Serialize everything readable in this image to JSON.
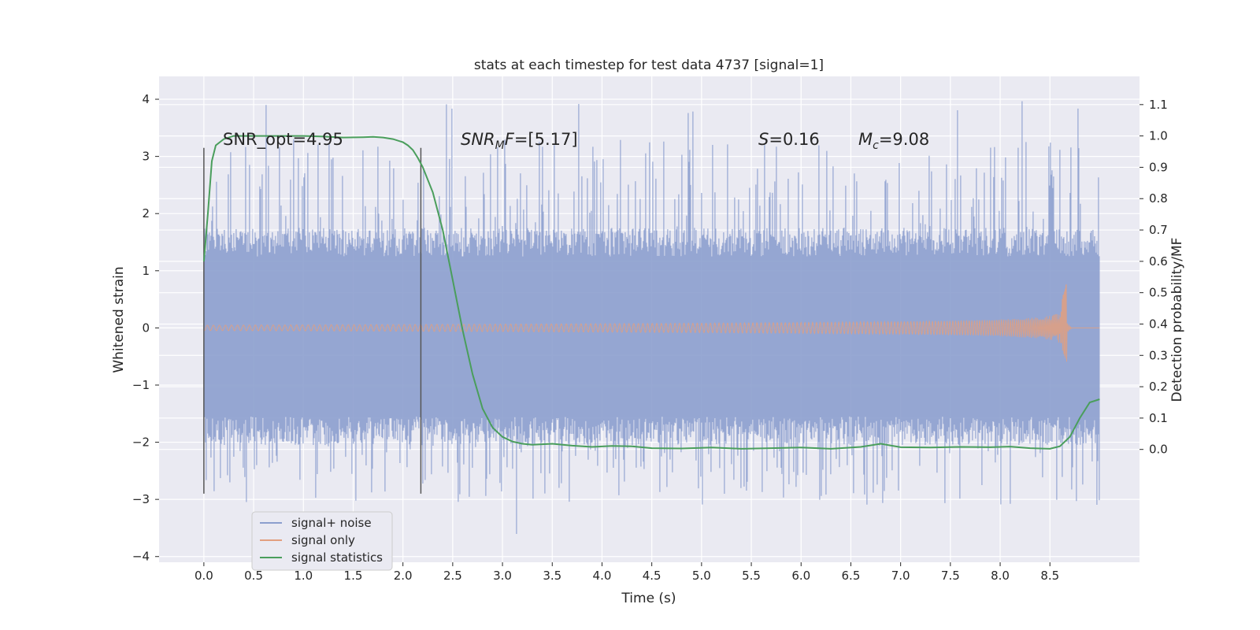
{
  "chart_data": {
    "type": "line",
    "title": "stats at each timestep for test data 4737 [signal=1]",
    "xlabel": "Time (s)",
    "ylabel": "Whitened strain",
    "ylabel_right": "Detection probability/MF",
    "xlim": [
      -0.45,
      9.4
    ],
    "ylim": [
      -4.1,
      4.4
    ],
    "ylim_right": [
      -0.36,
      1.19
    ],
    "x_ticks": [
      "0.0",
      "0.5",
      "1.0",
      "1.5",
      "2.0",
      "2.5",
      "3.0",
      "3.5",
      "4.0",
      "4.5",
      "5.0",
      "5.5",
      "6.0",
      "6.5",
      "7.0",
      "7.5",
      "8.0",
      "8.5"
    ],
    "y_ticks": [
      "4",
      "3",
      "2",
      "1",
      "0",
      "−1",
      "−2",
      "−3",
      "−4"
    ],
    "y_ticks_right": [
      "1.1",
      "1.0",
      "0.9",
      "0.8",
      "0.7",
      "0.6",
      "0.5",
      "0.4",
      "0.3",
      "0.2",
      "0.1",
      "0.0"
    ],
    "annotations": [
      {
        "text": "SNR_opt=4.95",
        "x": 0.2,
        "y": 3.15
      },
      {
        "text": "SNR_MF=[5.17]",
        "x": 2.6,
        "y": 3.15
      },
      {
        "text": "S=0.16",
        "x": 5.6,
        "y": 3.15
      },
      {
        "text": "M_c=9.08",
        "x": 6.6,
        "y": 3.15
      }
    ],
    "vertical_markers": [
      {
        "x": 0.0,
        "y_range": [
          -2.9,
          3.15
        ]
      },
      {
        "x": 2.18,
        "y_range": [
          -2.9,
          3.15
        ]
      }
    ],
    "legend": {
      "position": "lower-left",
      "entries": [
        {
          "label": "signal+ noise",
          "color": "#8c9fce"
        },
        {
          "label": "signal only",
          "color": "#e29f7f"
        },
        {
          "label": "signal statistics",
          "color": "#4a9e5c"
        }
      ]
    },
    "series": [
      {
        "name": "signal+ noise",
        "axis": "left",
        "color": "#8c9fce",
        "kind": "noise",
        "x_range": [
          0.0,
          9.0
        ],
        "band": [
          -1.7,
          1.4
        ],
        "peak_range": [
          -3.7,
          4.0
        ]
      },
      {
        "name": "signal only",
        "axis": "left",
        "color": "#e29f7f",
        "kind": "chirp",
        "x_range": [
          0.0,
          9.0
        ],
        "merger_time": 8.67,
        "peak_amplitude": [
          -0.6,
          0.8
        ]
      },
      {
        "name": "signal statistics",
        "axis": "right",
        "color": "#4a9e5c",
        "kind": "line",
        "x": [
          0.0,
          0.04,
          0.08,
          0.12,
          0.2,
          0.3,
          0.45,
          0.6,
          0.8,
          1.0,
          1.2,
          1.4,
          1.6,
          1.7,
          1.8,
          1.9,
          2.0,
          2.05,
          2.1,
          2.15,
          2.2,
          2.3,
          2.4,
          2.5,
          2.6,
          2.7,
          2.8,
          2.9,
          3.0,
          3.1,
          3.2,
          3.3,
          3.5,
          3.7,
          3.9,
          4.1,
          4.3,
          4.5,
          4.8,
          5.1,
          5.4,
          5.7,
          6.0,
          6.3,
          6.6,
          6.8,
          7.0,
          7.3,
          7.6,
          7.9,
          8.1,
          8.3,
          8.5,
          8.6,
          8.7,
          8.8,
          8.9,
          9.0
        ],
        "y": [
          0.6,
          0.75,
          0.92,
          0.97,
          0.99,
          1.0,
          1.0,
          1.0,
          1.0,
          1.0,
          0.998,
          0.995,
          0.996,
          0.997,
          0.995,
          0.99,
          0.98,
          0.97,
          0.955,
          0.93,
          0.9,
          0.82,
          0.7,
          0.54,
          0.38,
          0.24,
          0.13,
          0.07,
          0.04,
          0.025,
          0.018,
          0.015,
          0.018,
          0.012,
          0.008,
          0.011,
          0.01,
          0.004,
          0.003,
          0.006,
          0.002,
          0.004,
          0.006,
          0.002,
          0.008,
          0.018,
          0.007,
          0.006,
          0.008,
          0.007,
          0.009,
          0.004,
          0.002,
          0.01,
          0.04,
          0.1,
          0.15,
          0.16
        ]
      }
    ]
  }
}
